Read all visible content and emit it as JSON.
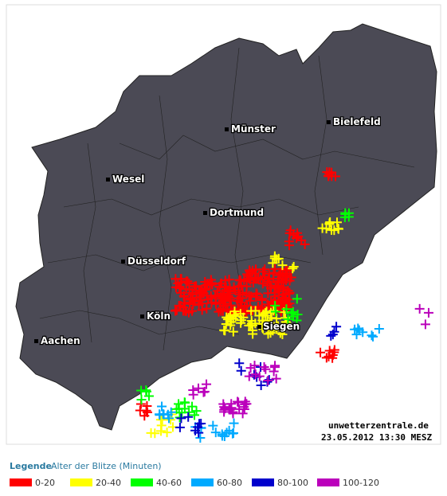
{
  "map": {
    "cities": [
      "Münster",
      "Bielefeld",
      "Wesel",
      "Dortmund",
      "Düsseldorf",
      "Köln",
      "Siegen",
      "Aachen"
    ],
    "credit": "unwetterzentrale.de",
    "timestamp": "23.05.2012 13:30 MESZ"
  },
  "legend": {
    "title": "Legende",
    "subtitle": "Alter der Blitze (Minuten)",
    "items": [
      {
        "label": "0-20",
        "color": "#ff0000"
      },
      {
        "label": "20-40",
        "color": "#ffff00"
      },
      {
        "label": "40-60",
        "color": "#00ff00"
      },
      {
        "label": "60-80",
        "color": "#00aaff"
      },
      {
        "label": "80-100",
        "color": "#0000cc"
      },
      {
        "label": "100-120",
        "color": "#bb00bb"
      }
    ]
  }
}
